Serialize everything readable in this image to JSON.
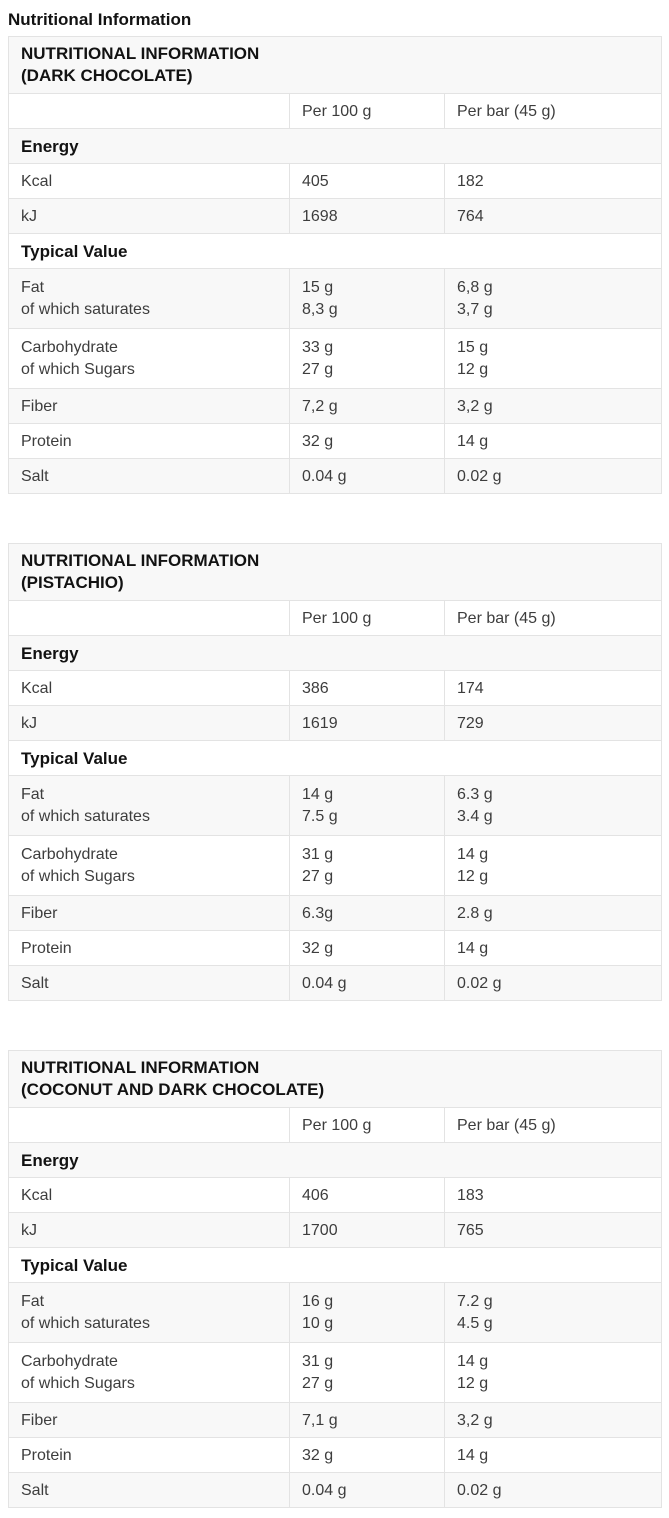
{
  "page": {
    "title": "Nutritional Information"
  },
  "tables": [
    {
      "title1": "NUTRITIONAL INFORMATION",
      "title2": "(DARK CHOCOLATE)",
      "col_per100": "Per 100 g",
      "col_perbar": "Per bar (45 g)",
      "energy_header": "Energy",
      "kcal": {
        "label": "Kcal",
        "per100": "405",
        "perbar": "182"
      },
      "kj": {
        "label": "kJ",
        "per100": "1698",
        "perbar": "764"
      },
      "typical_header": "Typical Value",
      "fat": {
        "label": "Fat",
        "sub": "of which saturates",
        "per100": "15 g",
        "sub_per100": "8,3 g",
        "perbar": "6,8 g",
        "sub_perbar": "3,7 g"
      },
      "carb": {
        "label": "Carbohydrate",
        "sub": "of which Sugars",
        "per100": "33 g",
        "sub_per100": "27 g",
        "perbar": "15 g",
        "sub_perbar": "12 g"
      },
      "fiber": {
        "label": "Fiber",
        "per100": "7,2 g",
        "perbar": "3,2 g"
      },
      "protein": {
        "label": "Protein",
        "per100": "32 g",
        "perbar": "14 g"
      },
      "salt": {
        "label": "Salt",
        "per100": "0.04 g",
        "perbar": "0.02 g"
      }
    },
    {
      "title1": "NUTRITIONAL INFORMATION",
      "title2": "(PISTACHIO)",
      "col_per100": "Per 100 g",
      "col_perbar": "Per bar (45 g)",
      "energy_header": "Energy",
      "kcal": {
        "label": "Kcal",
        "per100": "386",
        "perbar": "174"
      },
      "kj": {
        "label": "kJ",
        "per100": "1619",
        "perbar": "729"
      },
      "typical_header": "Typical Value",
      "fat": {
        "label": "Fat",
        "sub": "of which saturates",
        "per100": "14 g",
        "sub_per100": "7.5 g",
        "perbar": "6.3 g",
        "sub_perbar": "3.4 g"
      },
      "carb": {
        "label": "Carbohydrate",
        "sub": "of which Sugars",
        "per100": "31 g",
        "sub_per100": "27 g",
        "perbar": "14 g",
        "sub_perbar": "12 g"
      },
      "fiber": {
        "label": "Fiber",
        "per100": "6.3g",
        "perbar": "2.8 g"
      },
      "protein": {
        "label": "Protein",
        "per100": "32 g",
        "perbar": "14 g"
      },
      "salt": {
        "label": "Salt",
        "per100": "0.04 g",
        "perbar": "0.02 g"
      }
    },
    {
      "title1": "NUTRITIONAL INFORMATION",
      "title2": "(COCONUT AND DARK CHOCOLATE)",
      "col_per100": "Per 100 g",
      "col_perbar": "Per bar (45 g)",
      "energy_header": "Energy",
      "kcal": {
        "label": "Kcal",
        "per100": "406",
        "perbar": "183"
      },
      "kj": {
        "label": "kJ",
        "per100": "1700",
        "perbar": "765"
      },
      "typical_header": "Typical Value",
      "fat": {
        "label": "Fat",
        "sub": "of which saturates",
        "per100": "16 g",
        "sub_per100": "10 g",
        "perbar": "7.2 g",
        "sub_perbar": "4.5 g"
      },
      "carb": {
        "label": "Carbohydrate",
        "sub": "of which Sugars",
        "per100": "31 g",
        "sub_per100": "27 g",
        "perbar": "14 g",
        "sub_perbar": "12 g"
      },
      "fiber": {
        "label": "Fiber",
        "per100": "7,1 g",
        "perbar": "3,2 g"
      },
      "protein": {
        "label": "Protein",
        "per100": "32 g",
        "perbar": "14 g"
      },
      "salt": {
        "label": "Salt",
        "per100": "0.04 g",
        "perbar": "0.02 g"
      }
    }
  ]
}
